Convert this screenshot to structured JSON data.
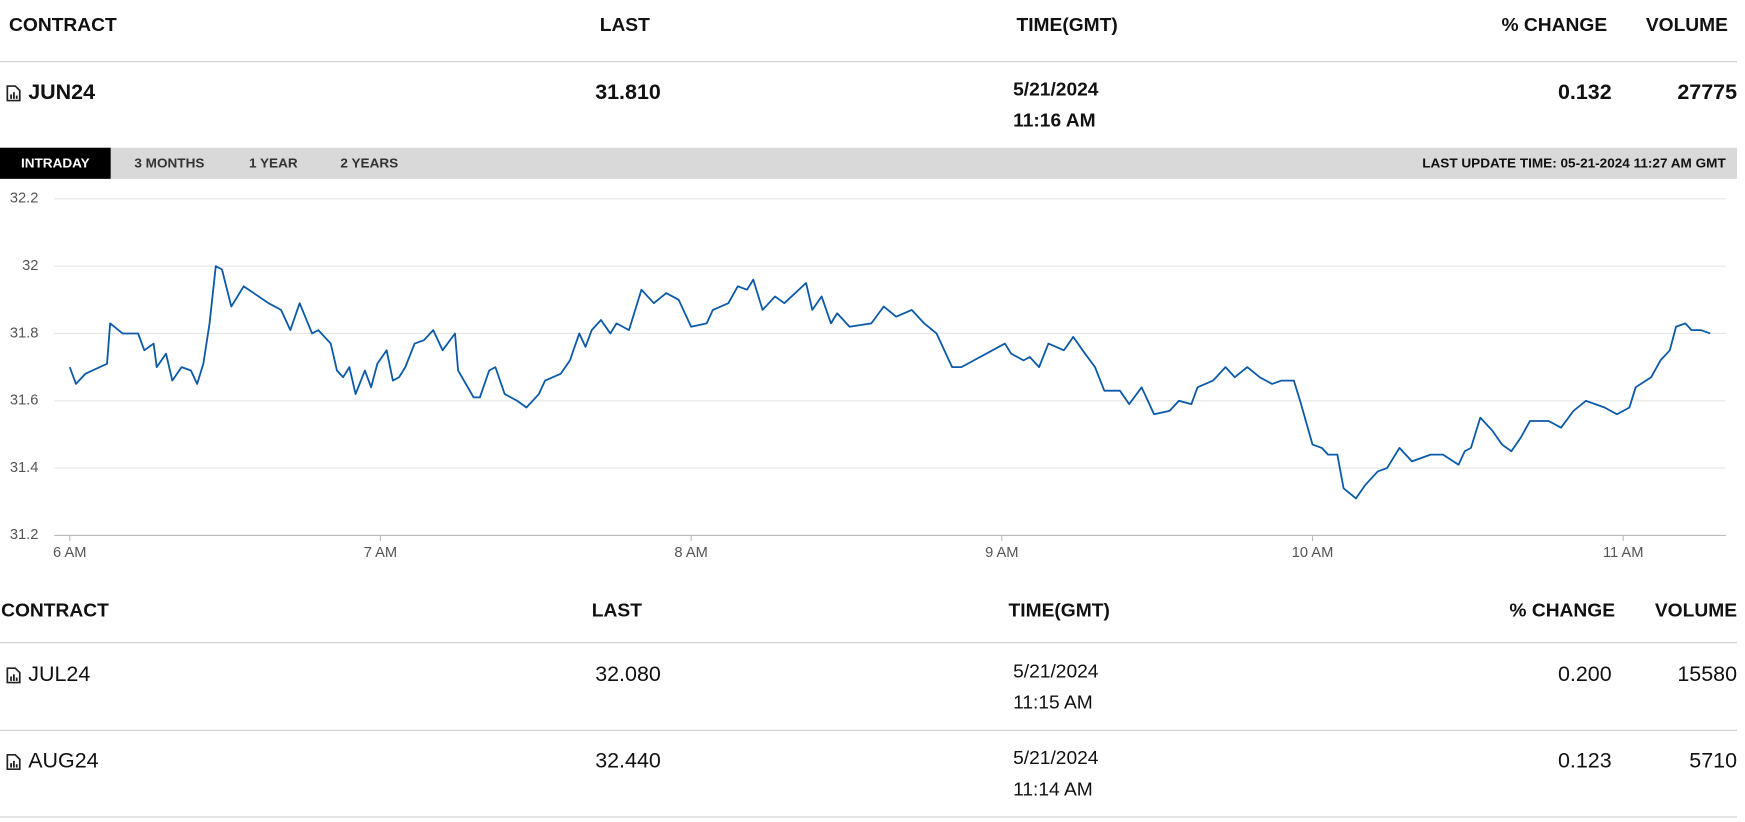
{
  "top_table": {
    "headers": [
      "CONTRACT",
      "LAST",
      "TIME(GMT)",
      "% CHANGE",
      "VOLUME"
    ],
    "rows": [
      {
        "contract": "JUN24",
        "last": "31.810",
        "date": "5/21/2024",
        "time": "11:16 AM",
        "change": "0.132",
        "volume": "27775"
      }
    ]
  },
  "tabs": [
    "INTRADAY",
    "3 MONTHS",
    "1 YEAR",
    "2 YEARS"
  ],
  "active_tab": 0,
  "last_update": "LAST UPDATE TIME: 05-21-2024 11:27 AM GMT",
  "chart_data": {
    "type": "line",
    "color": "#0b5aa8",
    "x": [
      6.0,
      6.02,
      6.05,
      6.12,
      6.13,
      6.17,
      6.22,
      6.24,
      6.27,
      6.28,
      6.31,
      6.33,
      6.36,
      6.39,
      6.41,
      6.43,
      6.45,
      6.47,
      6.49,
      6.52,
      6.56,
      6.64,
      6.68,
      6.71,
      6.74,
      6.78,
      6.8,
      6.84,
      6.86,
      6.88,
      6.9,
      6.92,
      6.95,
      6.97,
      6.99,
      7.02,
      7.04,
      7.06,
      7.08,
      7.11,
      7.14,
      7.17,
      7.2,
      7.24,
      7.25,
      7.3,
      7.32,
      7.35,
      7.37,
      7.4,
      7.44,
      7.47,
      7.51,
      7.53,
      7.58,
      7.61,
      7.64,
      7.66,
      7.68,
      7.71,
      7.74,
      7.76,
      7.8,
      7.84,
      7.88,
      7.92,
      7.96,
      8.0,
      8.05,
      8.07,
      8.12,
      8.15,
      8.18,
      8.2,
      8.23,
      8.27,
      8.3,
      8.37,
      8.39,
      8.42,
      8.45,
      8.47,
      8.51,
      8.58,
      8.62,
      8.66,
      8.71,
      8.75,
      8.79,
      8.84,
      8.87,
      8.93,
      9.01,
      9.03,
      9.07,
      9.09,
      9.12,
      9.15,
      9.2,
      9.23,
      9.26,
      9.3,
      9.33,
      9.38,
      9.41,
      9.45,
      9.49,
      9.54,
      9.57,
      9.61,
      9.63,
      9.68,
      9.72,
      9.75,
      9.79,
      9.83,
      9.87,
      9.9,
      9.94,
      9.96,
      10.0,
      10.03,
      10.05,
      10.08,
      10.1,
      10.14,
      10.17,
      10.21,
      10.24,
      10.28,
      10.32,
      10.38,
      10.42,
      10.47,
      10.49,
      10.51,
      10.54,
      10.58,
      10.61,
      10.64,
      10.67,
      10.7,
      10.76,
      10.8,
      10.84,
      10.88,
      10.94,
      10.98,
      11.02,
      11.04,
      11.09,
      11.12,
      11.15,
      11.17,
      11.2,
      11.22,
      11.25,
      11.28
    ],
    "values": [
      31.7,
      31.65,
      31.68,
      31.71,
      31.83,
      31.8,
      31.8,
      31.75,
      31.77,
      31.7,
      31.74,
      31.66,
      31.7,
      31.69,
      31.65,
      31.71,
      31.83,
      32.0,
      31.99,
      31.88,
      31.94,
      31.89,
      31.87,
      31.81,
      31.89,
      31.8,
      31.81,
      31.77,
      31.69,
      31.67,
      31.7,
      31.62,
      31.69,
      31.64,
      31.71,
      31.75,
      31.66,
      31.67,
      31.7,
      31.77,
      31.78,
      31.81,
      31.75,
      31.8,
      31.69,
      31.61,
      31.61,
      31.69,
      31.7,
      31.62,
      31.6,
      31.58,
      31.62,
      31.66,
      31.68,
      31.72,
      31.8,
      31.76,
      31.81,
      31.84,
      31.8,
      31.83,
      31.81,
      31.93,
      31.89,
      31.92,
      31.9,
      31.82,
      31.83,
      31.87,
      31.89,
      31.94,
      31.93,
      31.96,
      31.87,
      31.91,
      31.89,
      31.95,
      31.87,
      31.91,
      31.83,
      31.86,
      31.82,
      31.83,
      31.88,
      31.85,
      31.87,
      31.83,
      31.8,
      31.7,
      31.7,
      31.73,
      31.77,
      31.74,
      31.72,
      31.73,
      31.7,
      31.77,
      31.75,
      31.79,
      31.75,
      31.7,
      31.63,
      31.63,
      31.59,
      31.64,
      31.56,
      31.57,
      31.6,
      31.59,
      31.64,
      31.66,
      31.7,
      31.67,
      31.7,
      31.67,
      31.65,
      31.66,
      31.66,
      31.6,
      31.47,
      31.46,
      31.44,
      31.44,
      31.34,
      31.31,
      31.35,
      31.39,
      31.4,
      31.46,
      31.42,
      31.44,
      31.44,
      31.41,
      31.45,
      31.46,
      31.55,
      31.51,
      31.47,
      31.45,
      31.49,
      31.54,
      31.54,
      31.52,
      31.57,
      31.6,
      31.58,
      31.56,
      31.58,
      31.64,
      31.67,
      31.72,
      31.75,
      31.82,
      31.83,
      31.81,
      31.81,
      31.8
    ],
    "xlim": [
      5.95,
      11.33
    ],
    "xticks": [
      {
        "value": 6,
        "label": "6 AM"
      },
      {
        "value": 7,
        "label": "7 AM"
      },
      {
        "value": 8,
        "label": "8 AM"
      },
      {
        "value": 9,
        "label": "9 AM"
      },
      {
        "value": 10,
        "label": "10 AM"
      },
      {
        "value": 11,
        "label": "11 AM"
      }
    ],
    "ylim": [
      31.2,
      32.2
    ],
    "yticks": [
      31.2,
      31.4,
      31.6,
      31.8,
      32,
      32.2
    ],
    "grid": true
  },
  "bottom_table": {
    "headers": [
      "CONTRACT",
      "LAST",
      "TIME(GMT)",
      "% CHANGE",
      "VOLUME"
    ],
    "rows": [
      {
        "contract": "JUL24",
        "last": "32.080",
        "date": "5/21/2024",
        "time": "11:15 AM",
        "change": "0.200",
        "volume": "15580"
      },
      {
        "contract": "AUG24",
        "last": "32.440",
        "date": "5/21/2024",
        "time": "11:14 AM",
        "change": "0.123",
        "volume": "5710"
      }
    ]
  }
}
